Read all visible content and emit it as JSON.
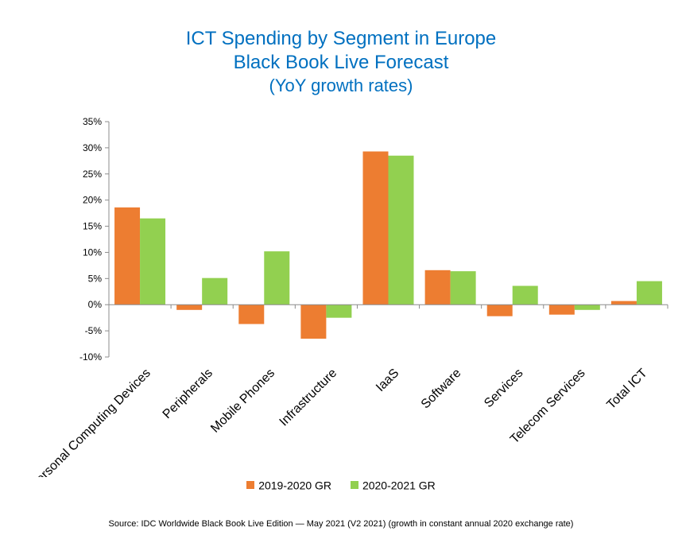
{
  "chart_data": {
    "type": "bar",
    "title": "ICT Spending by Segment in Europe",
    "subtitle": "Black Book Live Forecast",
    "subtitle2": "(YoY growth rates)",
    "categories": [
      "Personal Computing Devices",
      "Peripherals",
      "Mobile Phones",
      "Infrastructure",
      "IaaS",
      "Software",
      "Services",
      "Telecom Services",
      "Total ICT"
    ],
    "series": [
      {
        "name": "2019-2020 GR",
        "color": "#ed7d31",
        "values": [
          18.6,
          -1.0,
          -3.7,
          -6.5,
          29.3,
          6.6,
          -2.2,
          -1.9,
          0.7
        ]
      },
      {
        "name": "2020-2021 GR",
        "color": "#92d050",
        "values": [
          16.5,
          5.1,
          10.2,
          -2.5,
          28.5,
          6.4,
          3.6,
          -1.0,
          4.5
        ]
      }
    ],
    "ylim": [
      -10,
      35
    ],
    "yticks": [
      35,
      30,
      25,
      20,
      15,
      10,
      5,
      0,
      -5,
      -10
    ],
    "ytick_labels": [
      "35%",
      "30%",
      "25%",
      "20%",
      "15%",
      "10%",
      "5%",
      "0%",
      "-5%",
      "-10%"
    ],
    "xlabel": "",
    "ylabel": "",
    "grid": false,
    "legend": "bottom"
  },
  "source": "Source:  IDC Worldwide Black Book Live Edition — May 2021 (V2 2021) (growth  in constant annual 2020 exchange rate)"
}
